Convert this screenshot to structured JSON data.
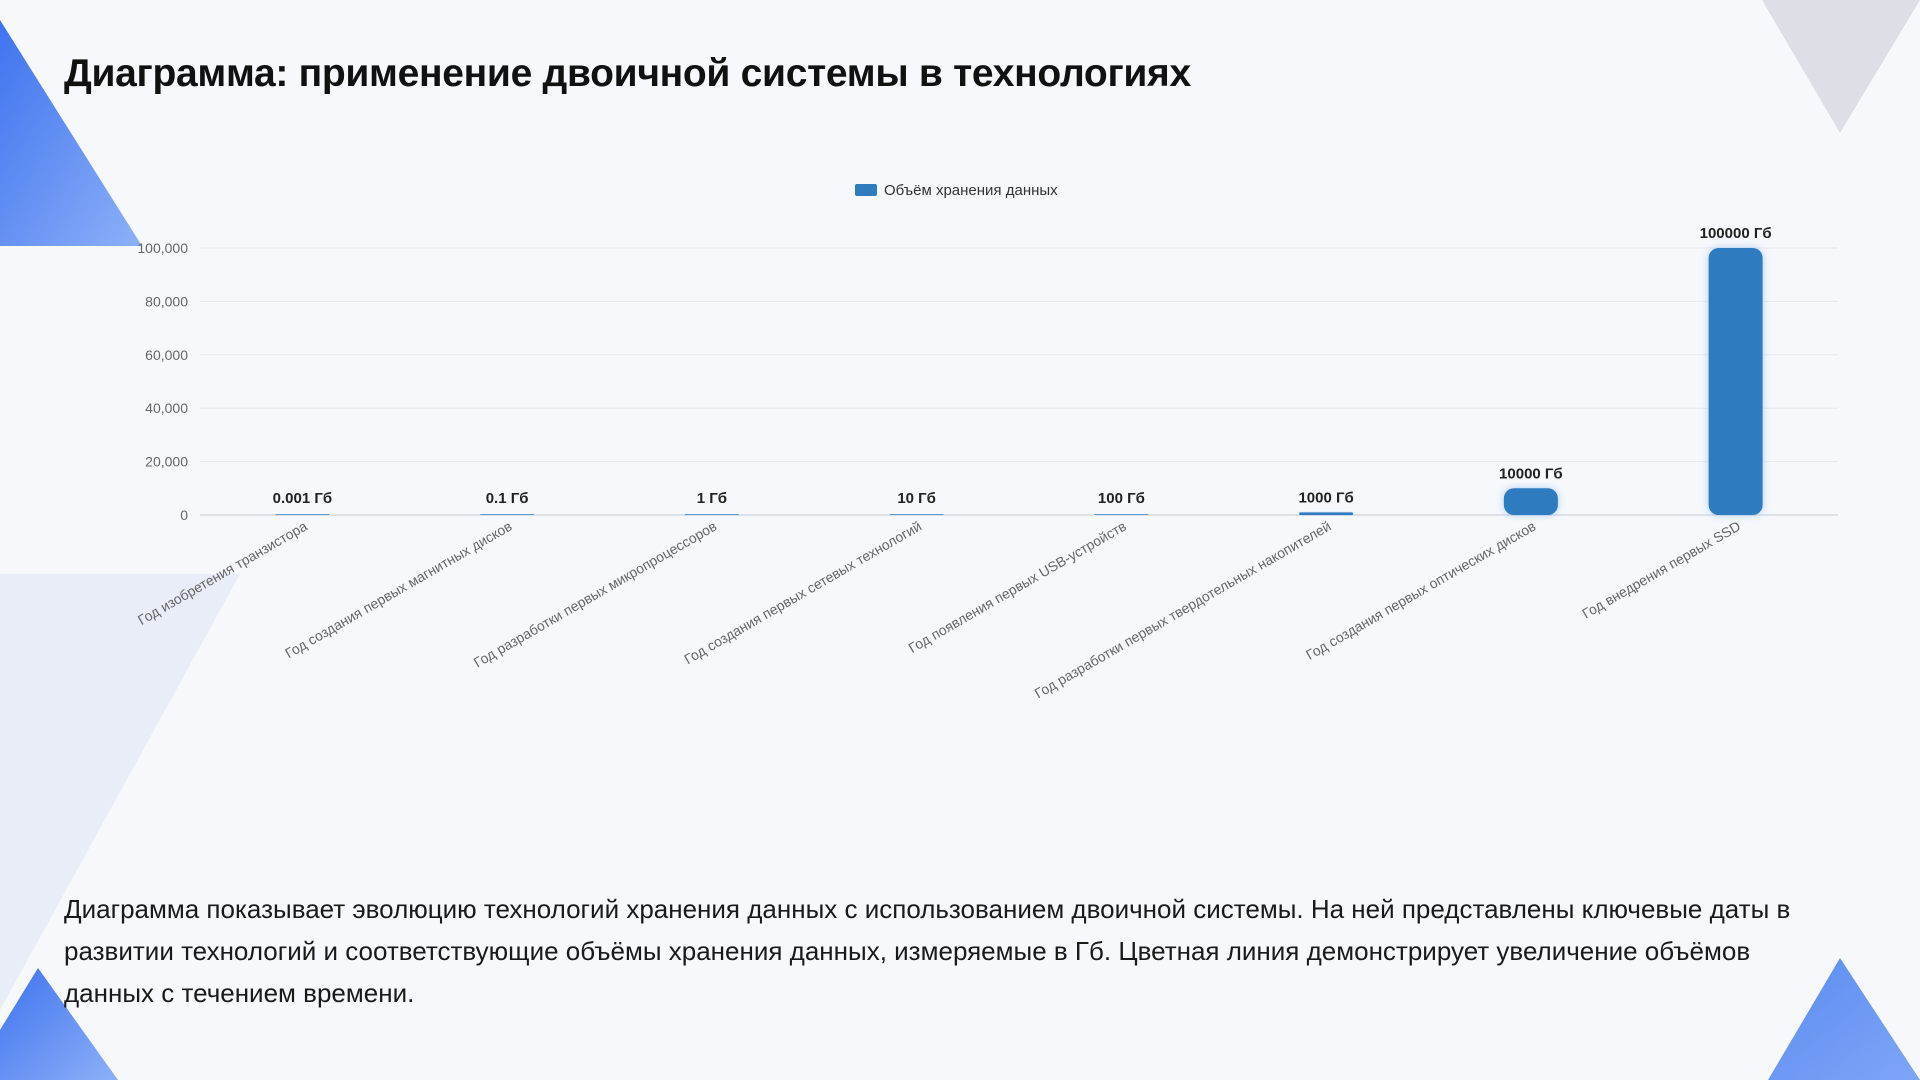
{
  "slide": {
    "title": "Диаграмма: применение двоичной системы в технологиях",
    "description": "Диаграмма показывает эволюцию технологий хранения данных с использованием двоичной системы. На ней представлены ключевые даты в развитии технологий и соответствующие объёмы хранения данных, измеряемые в Гб. Цветная линия демонстрирует увеличение объёмов данных с течением времени."
  },
  "chart_data": {
    "type": "bar",
    "title": "",
    "xlabel": "",
    "ylabel": "",
    "categories": [
      "Год изобретения транзистора",
      "Год создания первых магнитных дисков",
      "Год разработки первых микропроцессоров",
      "Год создания первых сетевых технологий",
      "Год появления первых USB-устройств",
      "Год разработки первых твердотельных накопителей",
      "Год создания первых оптических дисков",
      "Год внедрения первых SSD"
    ],
    "series": [
      {
        "name": "Объём хранения данных",
        "values": [
          0.001,
          0.1,
          1,
          10,
          100,
          1000,
          10000,
          100000
        ],
        "data_labels": [
          "0.001 Гб",
          "0.1 Гб",
          "1 Гб",
          "10 Гб",
          "100 Гб",
          "1000 Гб",
          "10000 Гб",
          "100000 Гб"
        ],
        "color": "#2f7bbf"
      }
    ],
    "ylim": [
      0,
      100000
    ],
    "yticks": [
      0,
      20000,
      40000,
      60000,
      80000,
      100000
    ],
    "ytick_labels": [
      "0",
      "20,000",
      "40,000",
      "60,000",
      "80,000",
      "100,000"
    ],
    "legend_position": "top",
    "grid": true
  },
  "colors": {
    "accent_blue": "#4a7ef0",
    "bar": "#2f7bbf",
    "decor_gray": "#dcdfe6"
  }
}
